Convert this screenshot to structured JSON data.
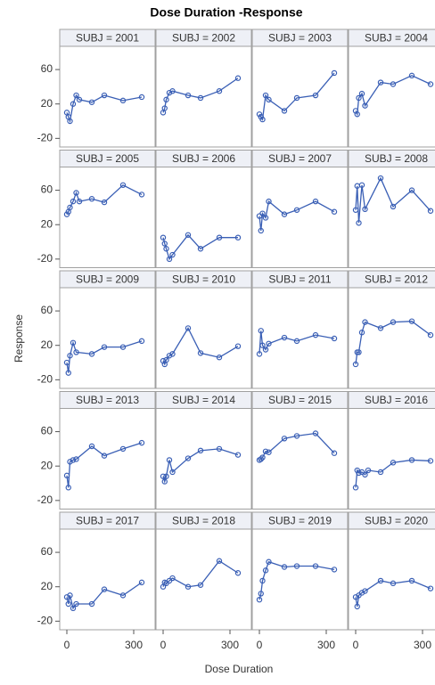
{
  "chart_data": {
    "type": "line",
    "title": "Dose Duration -Response",
    "x_label": "Dose Duration",
    "y_label": "Response",
    "color": "#3a5fb5",
    "xlim": [
      -32,
      396
    ],
    "ylim": [
      -30,
      87
    ],
    "xticks": [
      0,
      300
    ],
    "yticks": [
      -20,
      20,
      60
    ],
    "panels": [
      {
        "title": "SUBJ = 2001",
        "x": [
          0,
          7,
          14,
          28,
          42,
          56,
          112,
          168,
          252,
          336
        ],
        "values": [
          10,
          5,
          0,
          20,
          30,
          25,
          22,
          30,
          24,
          28
        ]
      },
      {
        "title": "SUBJ = 2002",
        "x": [
          0,
          7,
          14,
          28,
          42,
          112,
          168,
          252,
          336
        ],
        "values": [
          10,
          15,
          25,
          33,
          35,
          30,
          27,
          35,
          50
        ]
      },
      {
        "title": "SUBJ = 2003",
        "x": [
          0,
          7,
          14,
          28,
          42,
          112,
          168,
          252,
          336
        ],
        "values": [
          8,
          5,
          2,
          30,
          25,
          12,
          27,
          30,
          56
        ]
      },
      {
        "title": "SUBJ = 2004",
        "x": [
          0,
          7,
          14,
          28,
          42,
          112,
          168,
          252,
          336
        ],
        "values": [
          12,
          8,
          27,
          32,
          18,
          45,
          43,
          53,
          43
        ]
      },
      {
        "title": "SUBJ = 2005",
        "x": [
          0,
          7,
          14,
          28,
          42,
          56,
          112,
          168,
          252,
          336
        ],
        "values": [
          32,
          35,
          40,
          47,
          57,
          47,
          50,
          46,
          66,
          55
        ]
      },
      {
        "title": "SUBJ = 2006",
        "x": [
          0,
          7,
          14,
          28,
          42,
          112,
          168,
          252,
          336
        ],
        "values": [
          5,
          -2,
          -8,
          -20,
          -15,
          8,
          -8,
          5,
          5
        ]
      },
      {
        "title": "SUBJ = 2007",
        "x": [
          0,
          7,
          14,
          28,
          42,
          112,
          168,
          252,
          336
        ],
        "values": [
          30,
          13,
          33,
          28,
          47,
          32,
          37,
          47,
          35
        ]
      },
      {
        "title": "SUBJ = 2008",
        "x": [
          0,
          7,
          14,
          28,
          42,
          112,
          168,
          252,
          336
        ],
        "values": [
          37,
          65,
          22,
          66,
          38,
          74,
          41,
          60,
          36
        ]
      },
      {
        "title": "SUBJ = 2009",
        "x": [
          0,
          7,
          14,
          28,
          42,
          112,
          168,
          252,
          336
        ],
        "values": [
          0,
          -12,
          8,
          23,
          12,
          10,
          18,
          18,
          25
        ]
      },
      {
        "title": "SUBJ = 2010",
        "x": [
          0,
          7,
          14,
          28,
          42,
          112,
          168,
          252,
          336
        ],
        "values": [
          2,
          -2,
          3,
          8,
          10,
          40,
          11,
          6,
          19
        ]
      },
      {
        "title": "SUBJ = 2011",
        "x": [
          0,
          7,
          14,
          28,
          42,
          112,
          168,
          252,
          336
        ],
        "values": [
          10,
          37,
          20,
          15,
          22,
          29,
          25,
          32,
          28
        ]
      },
      {
        "title": "SUBJ = 2012",
        "x": [
          0,
          7,
          14,
          28,
          42,
          112,
          168,
          252,
          336
        ],
        "values": [
          -2,
          12,
          12,
          35,
          47,
          40,
          47,
          48,
          32
        ]
      },
      {
        "title": "SUBJ = 2013",
        "x": [
          0,
          7,
          14,
          28,
          42,
          112,
          168,
          252,
          336
        ],
        "values": [
          9,
          -5,
          25,
          27,
          28,
          43,
          32,
          40,
          47
        ]
      },
      {
        "title": "SUBJ = 2014",
        "x": [
          0,
          7,
          14,
          28,
          42,
          112,
          168,
          252,
          336
        ],
        "values": [
          8,
          2,
          8,
          27,
          13,
          29,
          38,
          40,
          33
        ]
      },
      {
        "title": "SUBJ = 2015",
        "x": [
          0,
          7,
          14,
          28,
          42,
          112,
          168,
          252,
          336
        ],
        "values": [
          27,
          28,
          30,
          37,
          36,
          52,
          55,
          58,
          35
        ]
      },
      {
        "title": "SUBJ = 2016",
        "x": [
          0,
          7,
          14,
          28,
          42,
          56,
          112,
          168,
          252,
          336
        ],
        "values": [
          -5,
          15,
          12,
          13,
          10,
          15,
          13,
          24,
          27,
          26
        ]
      },
      {
        "title": "SUBJ = 2017",
        "x": [
          0,
          7,
          14,
          28,
          42,
          112,
          168,
          252,
          336
        ],
        "values": [
          8,
          0,
          10,
          -5,
          0,
          0,
          17,
          10,
          25
        ]
      },
      {
        "title": "SUBJ = 2018",
        "x": [
          0,
          7,
          14,
          28,
          42,
          112,
          168,
          252,
          336
        ],
        "values": [
          20,
          25,
          24,
          27,
          30,
          20,
          22,
          50,
          36
        ]
      },
      {
        "title": "SUBJ = 2019",
        "x": [
          0,
          7,
          14,
          28,
          42,
          112,
          168,
          252,
          336
        ],
        "values": [
          5,
          12,
          27,
          39,
          49,
          43,
          44,
          44,
          40
        ]
      },
      {
        "title": "SUBJ = 2020",
        "x": [
          0,
          7,
          14,
          28,
          42,
          112,
          168,
          252,
          336
        ],
        "values": [
          8,
          -3,
          10,
          13,
          15,
          27,
          24,
          27,
          18
        ]
      }
    ]
  }
}
